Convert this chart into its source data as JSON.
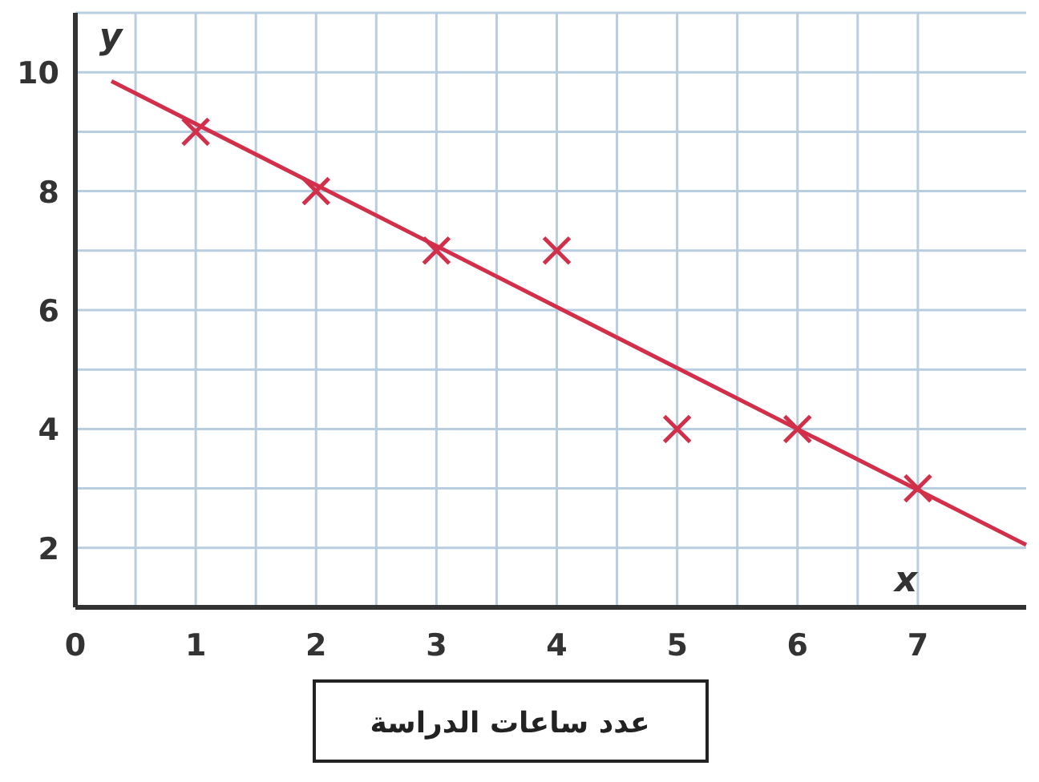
{
  "chart_data": {
    "type": "scatter",
    "xlabel": "عدد ساعات الدراسة",
    "ylabel": "y",
    "annotations": [
      "x"
    ],
    "x": [
      1,
      2,
      3,
      4,
      5,
      6,
      7
    ],
    "series": [
      {
        "type": "scatter",
        "color": "#d2304a",
        "marker": "cross",
        "values": [
          9,
          8,
          7,
          7,
          4,
          4,
          3
        ]
      },
      {
        "type": "line",
        "color": "#d2304a",
        "marker": "none",
        "line_style": "solid",
        "x": [
          0.3,
          7.9
        ],
        "values": [
          9.85,
          2.05
        ]
      }
    ],
    "xlim": [
      0,
      7.9
    ],
    "ylim": [
      1,
      11
    ],
    "xticks": [
      0,
      {
        "value": 0.5,
        "label": null
      },
      1,
      {
        "value": 1.5,
        "label": null
      },
      2,
      {
        "value": 2.5,
        "label": null
      },
      3,
      {
        "value": 3.5,
        "label": null
      },
      4,
      {
        "value": 4.5,
        "label": null
      },
      5,
      {
        "value": 5.5,
        "label": null
      },
      6,
      {
        "value": 6.5,
        "label": null
      },
      7
    ],
    "yticks": [
      {
        "value": 1,
        "label": null
      },
      2,
      {
        "value": 3,
        "label": null
      },
      4,
      {
        "value": 5,
        "label": null
      },
      6,
      {
        "value": 7,
        "label": null
      },
      8,
      {
        "value": 9,
        "label": null
      },
      10,
      {
        "value": 11,
        "label": null
      }
    ],
    "grid": true
  }
}
